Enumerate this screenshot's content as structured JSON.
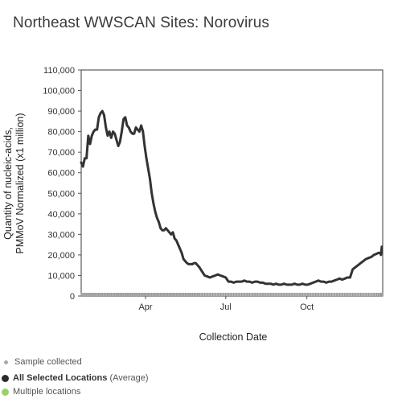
{
  "header": {
    "title": "Northeast WWSCAN Sites: Norovirus"
  },
  "legend": {
    "sample": {
      "label": "Sample collected",
      "color": "#a9a9a9"
    },
    "all": {
      "label": "All Selected Locations",
      "suffix": "(Average)",
      "color": "#2b2b2b"
    },
    "multi": {
      "label": "Multiple locations",
      "color": "#9ad06a"
    }
  },
  "chart_data": {
    "type": "line",
    "xlabel": "Collection Date",
    "ylabel_line1": "Quantity of nucleic-acids,",
    "ylabel_line2": "PMMoV Normalized (x1 million)",
    "ylim": [
      0,
      110000
    ],
    "yticks": [
      0,
      10000,
      20000,
      30000,
      40000,
      50000,
      60000,
      70000,
      80000,
      90000,
      100000,
      110000
    ],
    "ytick_labels": [
      "0",
      "10,000",
      "20,000",
      "30,000",
      "40,000",
      "50,000",
      "60,000",
      "70,000",
      "80,000",
      "90,000",
      "100,000",
      "110,000"
    ],
    "xlim": [
      "2023-01-18",
      "2023-12-26"
    ],
    "xticks": [
      {
        "date": "2023-04-01",
        "label": "Apr"
      },
      {
        "date": "2023-07-01",
        "label": "Jul"
      },
      {
        "date": "2023-10-01",
        "label": "Oct"
      }
    ],
    "line_color": "#333333",
    "series": [
      {
        "name": "All Selected Locations",
        "x": [
          "2023-01-18",
          "2023-01-20",
          "2023-01-22",
          "2023-01-24",
          "2023-01-26",
          "2023-01-28",
          "2023-01-30",
          "2023-02-01",
          "2023-02-03",
          "2023-02-05",
          "2023-02-07",
          "2023-02-09",
          "2023-02-11",
          "2023-02-13",
          "2023-02-15",
          "2023-02-17",
          "2023-02-19",
          "2023-02-21",
          "2023-02-23",
          "2023-02-25",
          "2023-02-27",
          "2023-03-01",
          "2023-03-03",
          "2023-03-05",
          "2023-03-07",
          "2023-03-09",
          "2023-03-11",
          "2023-03-13",
          "2023-03-15",
          "2023-03-17",
          "2023-03-19",
          "2023-03-21",
          "2023-03-23",
          "2023-03-25",
          "2023-03-27",
          "2023-03-29",
          "2023-03-31",
          "2023-04-02",
          "2023-04-04",
          "2023-04-06",
          "2023-04-08",
          "2023-04-10",
          "2023-04-12",
          "2023-04-14",
          "2023-04-16",
          "2023-04-18",
          "2023-04-20",
          "2023-04-22",
          "2023-04-24",
          "2023-04-26",
          "2023-04-28",
          "2023-04-30",
          "2023-05-02",
          "2023-05-04",
          "2023-05-06",
          "2023-05-08",
          "2023-05-10",
          "2023-05-12",
          "2023-05-14",
          "2023-05-16",
          "2023-05-18",
          "2023-05-20",
          "2023-05-22",
          "2023-05-24",
          "2023-05-26",
          "2023-05-28",
          "2023-05-30",
          "2023-06-01",
          "2023-06-04",
          "2023-06-07",
          "2023-06-10",
          "2023-06-13",
          "2023-06-16",
          "2023-06-19",
          "2023-06-22",
          "2023-06-25",
          "2023-06-28",
          "2023-07-01",
          "2023-07-04",
          "2023-07-07",
          "2023-07-10",
          "2023-07-13",
          "2023-07-16",
          "2023-07-19",
          "2023-07-22",
          "2023-07-25",
          "2023-07-28",
          "2023-07-31",
          "2023-08-03",
          "2023-08-06",
          "2023-08-09",
          "2023-08-12",
          "2023-08-15",
          "2023-08-18",
          "2023-08-21",
          "2023-08-24",
          "2023-08-27",
          "2023-08-30",
          "2023-09-02",
          "2023-09-05",
          "2023-09-08",
          "2023-09-11",
          "2023-09-14",
          "2023-09-17",
          "2023-09-20",
          "2023-09-23",
          "2023-09-26",
          "2023-09-29",
          "2023-10-02",
          "2023-10-05",
          "2023-10-08",
          "2023-10-11",
          "2023-10-14",
          "2023-10-17",
          "2023-10-20",
          "2023-10-23",
          "2023-10-26",
          "2023-10-29",
          "2023-11-01",
          "2023-11-04",
          "2023-11-07",
          "2023-11-10",
          "2023-11-13",
          "2023-11-16",
          "2023-11-19",
          "2023-11-22",
          "2023-11-25",
          "2023-11-28",
          "2023-12-01",
          "2023-12-04",
          "2023-12-07",
          "2023-12-10",
          "2023-12-13",
          "2023-12-16",
          "2023-12-19",
          "2023-12-21",
          "2023-12-23",
          "2023-12-24",
          "2023-12-25"
        ],
        "y": [
          65000,
          63000,
          67000,
          67000,
          78000,
          74000,
          78000,
          80000,
          81000,
          81000,
          87000,
          89000,
          90000,
          88000,
          82000,
          78000,
          80000,
          77000,
          80000,
          79000,
          76000,
          73000,
          75000,
          80000,
          86000,
          87000,
          83000,
          82000,
          80000,
          79000,
          79000,
          82000,
          81000,
          80000,
          83000,
          80000,
          73000,
          67000,
          62000,
          57000,
          50000,
          45000,
          41000,
          38000,
          36000,
          33000,
          32000,
          32000,
          33000,
          32000,
          31000,
          30000,
          31000,
          28000,
          27000,
          25000,
          23000,
          21000,
          18000,
          17000,
          16000,
          15500,
          15500,
          15500,
          16000,
          16000,
          15000,
          14000,
          12000,
          10000,
          9500,
          9000,
          9500,
          10000,
          10500,
          10000,
          9500,
          9000,
          7000,
          7000,
          6500,
          7000,
          7000,
          7000,
          7500,
          7000,
          7000,
          6500,
          7000,
          7000,
          6500,
          6500,
          6000,
          6000,
          6000,
          5500,
          6000,
          5500,
          5500,
          6000,
          5500,
          5500,
          5500,
          6000,
          5500,
          5500,
          6000,
          5500,
          5500,
          6000,
          6500,
          7000,
          7500,
          7000,
          7000,
          6500,
          7000,
          7000,
          7500,
          8000,
          8500,
          8000,
          8500,
          9000,
          9000,
          13000,
          14000,
          15000,
          16000,
          17000,
          18000,
          18500,
          19000,
          20000,
          20500,
          21000,
          21000,
          20000,
          24000
        ]
      }
    ]
  }
}
